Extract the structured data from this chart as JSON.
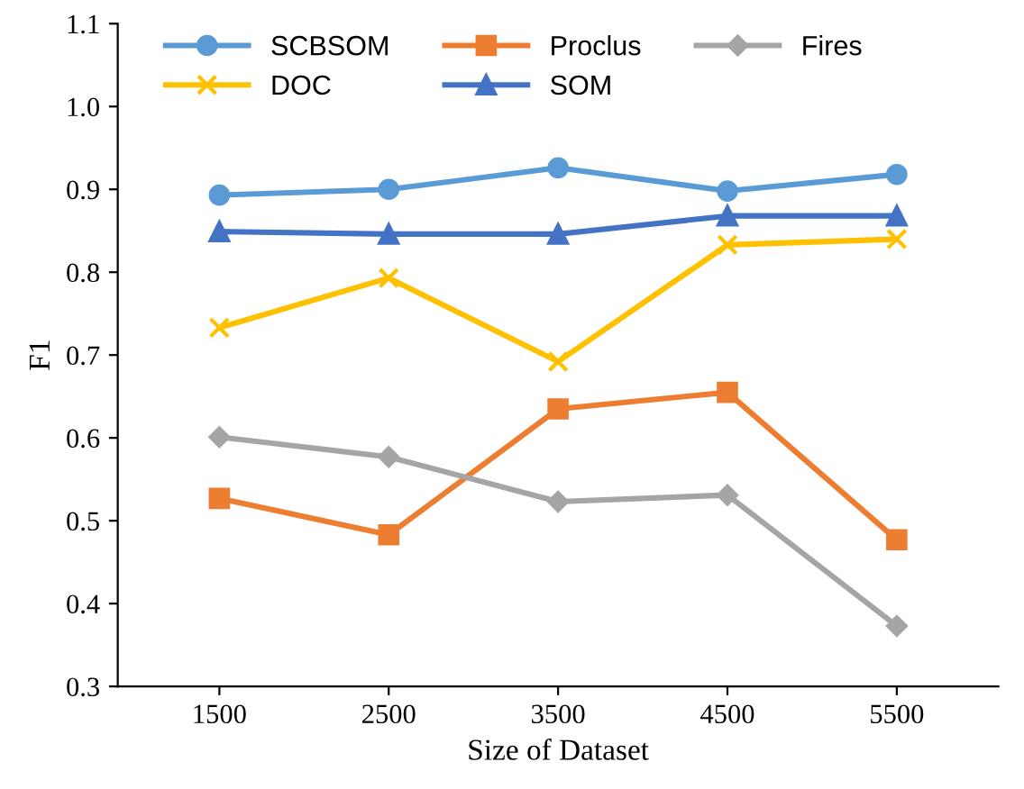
{
  "chart_data": {
    "type": "line",
    "xlabel": "Size of Dataset",
    "ylabel": "F1",
    "categories": [
      "1500",
      "2500",
      "3500",
      "4500",
      "5500"
    ],
    "series": [
      {
        "name": "SCBSOM",
        "color": "#5b9bd5",
        "marker": "circle",
        "values": [
          0.893,
          0.9,
          0.926,
          0.898,
          0.918
        ]
      },
      {
        "name": "Proclus",
        "color": "#ed7d31",
        "marker": "square",
        "values": [
          0.527,
          0.483,
          0.635,
          0.655,
          0.477
        ]
      },
      {
        "name": "Fires",
        "color": "#a5a5a5",
        "marker": "diamond",
        "values": [
          0.601,
          0.577,
          0.523,
          0.531,
          0.373
        ]
      },
      {
        "name": "DOC",
        "color": "#ffc000",
        "marker": "cross",
        "values": [
          0.733,
          0.793,
          0.692,
          0.833,
          0.84
        ]
      },
      {
        "name": "SOM",
        "color": "#4472c4",
        "marker": "triangle",
        "values": [
          0.849,
          0.846,
          0.846,
          0.868,
          0.868
        ]
      }
    ],
    "ylim": [
      0.3,
      1.1
    ],
    "yticks": [
      0.3,
      0.4,
      0.5,
      0.6,
      0.7,
      0.8,
      0.9,
      {
        "value": 1.0,
        "label": "1.0"
      },
      1.1
    ],
    "grid": false,
    "legend": "top"
  }
}
